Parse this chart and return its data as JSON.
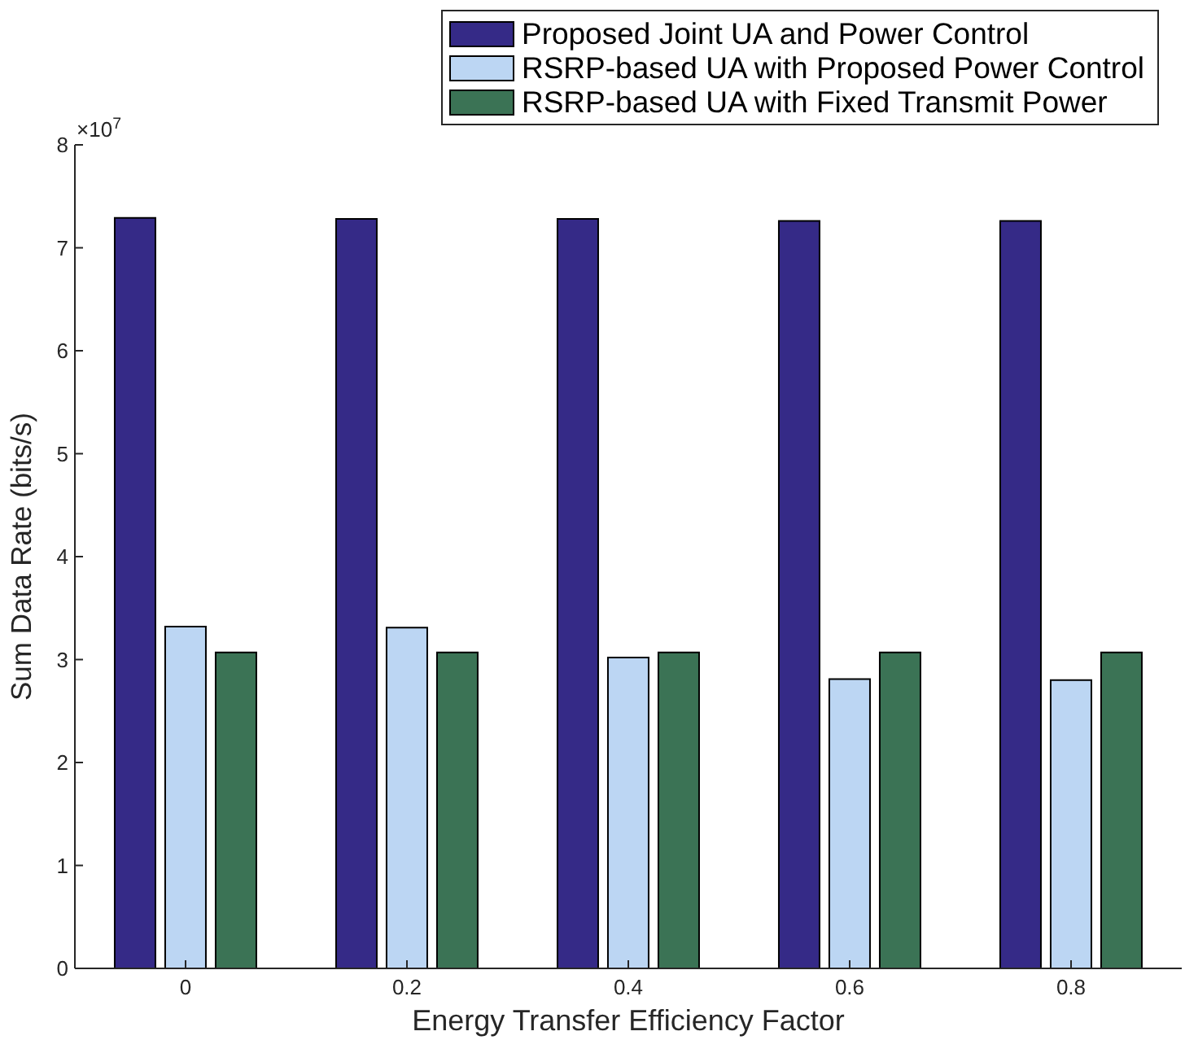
{
  "chart_data": {
    "type": "bar",
    "categories": [
      "0",
      "0.2",
      "0.4",
      "0.6",
      "0.8"
    ],
    "series": [
      {
        "name": "Proposed Joint UA and Power Control",
        "color": "#352a87",
        "values": [
          7.29,
          7.28,
          7.28,
          7.26,
          7.26
        ]
      },
      {
        "name": "RSRP-based UA with Proposed Power Control",
        "color": "#bcd6f3",
        "values": [
          3.32,
          3.31,
          3.02,
          2.81,
          2.8
        ]
      },
      {
        "name": "RSRP-based UA with Fixed Transmit Power",
        "color": "#3b7355",
        "values": [
          3.07,
          3.07,
          3.07,
          3.07,
          3.07
        ]
      }
    ],
    "xlabel": "Energy Transfer Efficiency Factor",
    "ylabel": "Sum Data Rate (bits/s)",
    "ylim": [
      0,
      8
    ],
    "yticks": [
      0,
      1,
      2,
      3,
      4,
      5,
      6,
      7,
      8
    ],
    "legend": "top right",
    "annotations": [
      "×10$^{7}$"
    ]
  }
}
